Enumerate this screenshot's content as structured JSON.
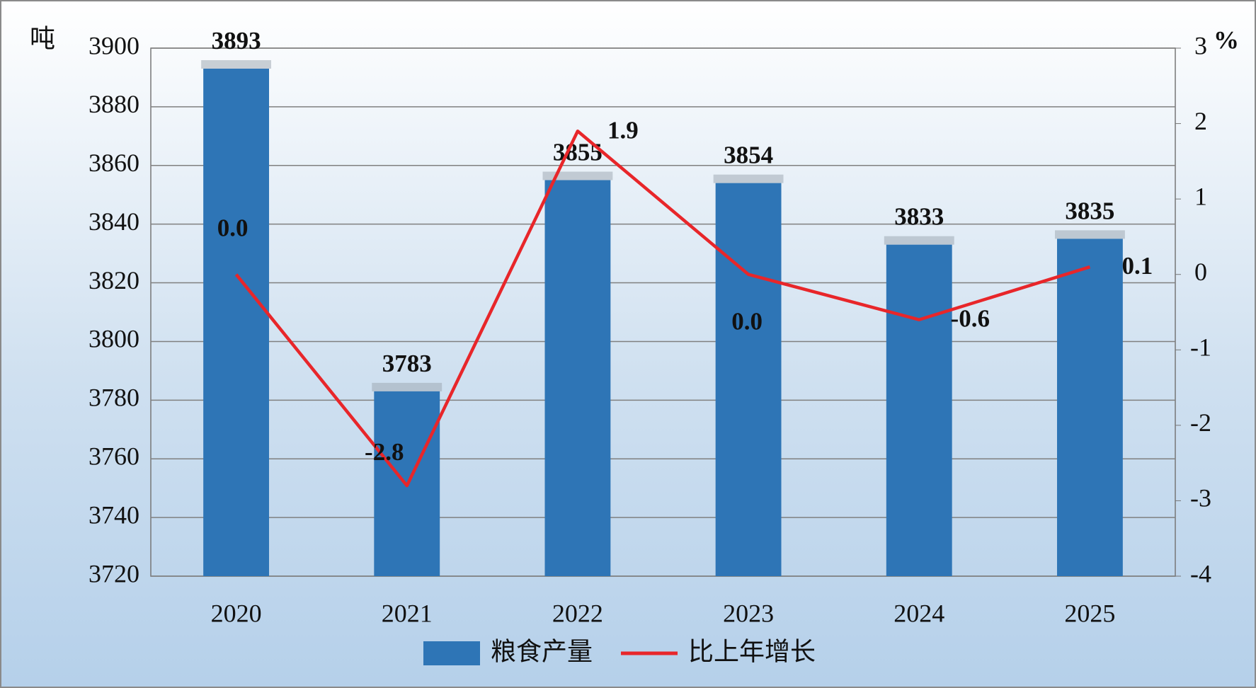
{
  "chart_data": {
    "type": "bar",
    "y_label": "吨",
    "y2_label": "%",
    "categories": [
      "2020",
      "2021",
      "2022",
      "2023",
      "2024",
      "2025"
    ],
    "series": [
      {
        "name": "粮食产量",
        "type": "bar",
        "color": "#2e75b6",
        "values": [
          3893,
          3783,
          3855,
          3854,
          3833,
          3835
        ]
      },
      {
        "name": "比上年增长",
        "type": "line",
        "axis": "y2",
        "color": "#e8262a",
        "values": [
          0.0,
          -2.8,
          1.9,
          0.0,
          -0.6,
          0.1
        ],
        "value_labels": [
          "0.0",
          "-2.8",
          "1.9",
          "0.0",
          "-0.6",
          "0.1"
        ]
      }
    ],
    "ylim": [
      3720,
      3900
    ],
    "yticks": [
      3720,
      3740,
      3760,
      3780,
      3800,
      3820,
      3840,
      3860,
      3880,
      3900
    ],
    "y2lim": [
      -4,
      3
    ],
    "y2ticks": [
      -4,
      -3,
      -2,
      -1,
      0,
      1,
      2,
      3
    ],
    "grid": true
  }
}
